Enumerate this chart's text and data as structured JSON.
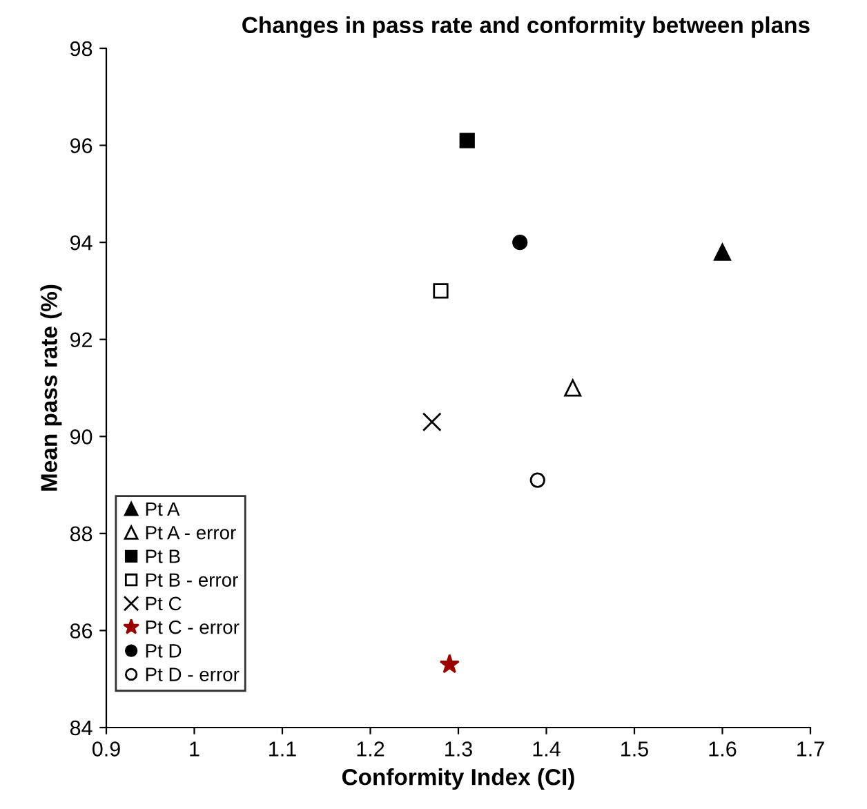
{
  "chart_data": {
    "type": "scatter",
    "title": "Changes in pass rate and conformity between plans",
    "xlabel": "Conformity Index (CI)",
    "ylabel": "Mean pass rate (%)",
    "xlim": [
      0.9,
      1.7
    ],
    "xticks": [
      0.9,
      1,
      1.1,
      1.2,
      1.3,
      1.4,
      1.5,
      1.6,
      1.7
    ],
    "ylim": [
      84,
      98
    ],
    "yticks": [
      84,
      86,
      88,
      90,
      92,
      94,
      96,
      98
    ],
    "grid": false,
    "legend": "bottom left",
    "series": [
      {
        "name": "Pt A",
        "color": "#000000",
        "marker": "triangle",
        "x": [
          1.6
        ],
        "values": [
          93.8
        ]
      },
      {
        "name": "Pt A - error",
        "color": "#ffffff",
        "marker": "triangle",
        "x": [
          1.43
        ],
        "values": [
          91.0
        ]
      },
      {
        "name": "Pt B",
        "color": "#000000",
        "marker": "square",
        "x": [
          1.31
        ],
        "values": [
          96.1
        ]
      },
      {
        "name": "Pt B - error",
        "color": "#ffffff",
        "marker": "square",
        "x": [
          1.28
        ],
        "values": [
          93.0
        ]
      },
      {
        "name": "Pt C",
        "color": "#000000",
        "marker": "cross",
        "x": [
          1.27
        ],
        "values": [
          90.3
        ]
      },
      {
        "name": "Pt C - error",
        "color": "#990000",
        "marker": "star",
        "x": [
          1.29
        ],
        "values": [
          85.3
        ]
      },
      {
        "name": "Pt D",
        "color": "#000000",
        "marker": "circle",
        "x": [
          1.37
        ],
        "values": [
          94.0
        ]
      },
      {
        "name": "Pt D - error",
        "color": "#ffffff",
        "marker": "circle",
        "x": [
          1.39
        ],
        "values": [
          89.1
        ]
      }
    ]
  }
}
